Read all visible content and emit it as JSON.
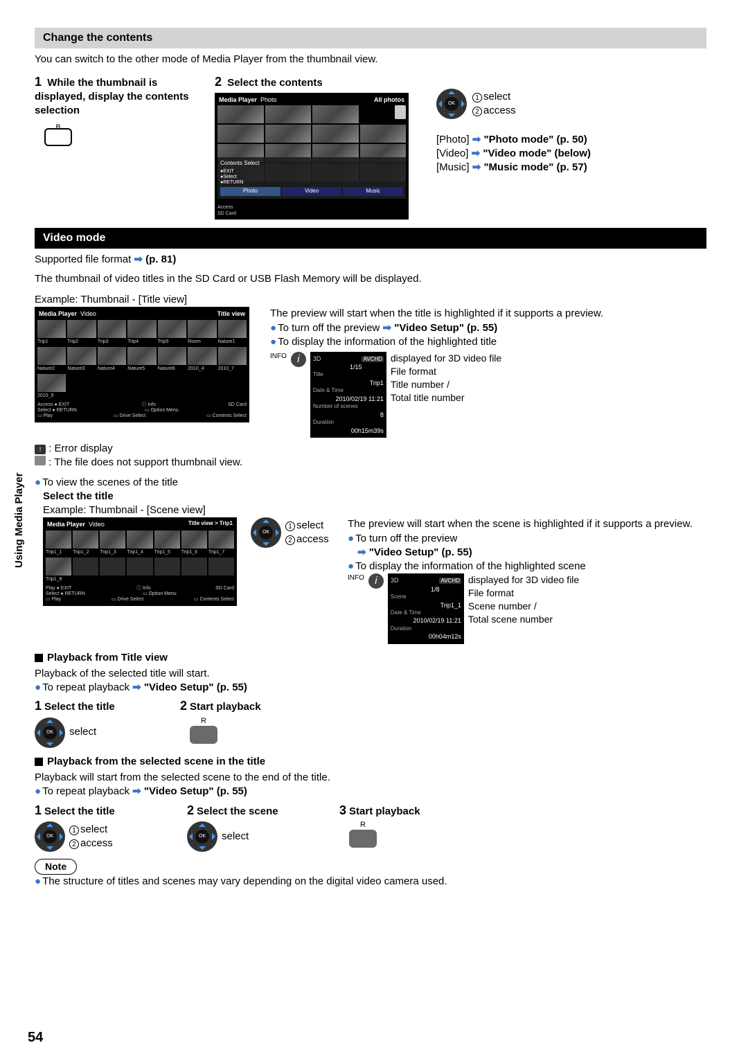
{
  "page": {
    "side_title": "Using Media Player",
    "page_number": "54"
  },
  "change": {
    "header": "Change the contents",
    "intro": "You can switch to the other mode of Media Player from the thumbnail view.",
    "step1_num": "1",
    "step1": "While the thumbnail is displayed, display the contents selection",
    "step1_key": "B",
    "step2_num": "2",
    "step2": "Select the contents",
    "pad_select_1": "select",
    "pad_select_2": "access",
    "links": {
      "photo_label": "[Photo]",
      "photo_ref": "\"Photo mode\" (p. 50)",
      "video_label": "[Video]",
      "video_ref": "\"Video mode\" (below)",
      "music_label": "[Music]",
      "music_ref": "\"Music mode\" (p. 57)"
    },
    "mp": {
      "title": "Media Player",
      "mode": "Photo",
      "right": "All photos",
      "overlay_title": "Contents Select",
      "exit": "EXIT",
      "select": "Select",
      "return": "RETURN",
      "access": "Access",
      "sdcard": "SD Card",
      "tab_photo": "Photo",
      "tab_video": "Video",
      "tab_music": "Music"
    }
  },
  "video": {
    "header": "Video mode",
    "supported_prefix": "Supported file format",
    "supported_ref": "(p. 81)",
    "thumb_intro": "The thumbnail of video titles in the SD Card or USB Flash Memory will be displayed.",
    "example_title": "Example: Thumbnail - [Title view]",
    "mp": {
      "title": "Media Player",
      "mode": "Video",
      "right": "Title view",
      "titles": [
        "Trip1",
        "Trip2",
        "Trip3",
        "Trip4",
        "Trip5",
        "Room",
        "Nature1",
        "Nature2",
        "Nature3",
        "Nature4",
        "Nature5",
        "Nature6",
        "2010_4",
        "2010_7",
        "2010_9"
      ],
      "bottom_access": "Access",
      "bottom_select": "Select",
      "bottom_exit": "EXIT",
      "bottom_return": "RETURN",
      "bottom_info_i": "Info",
      "bottom_option": "Option Menu",
      "bottom_drive": "Drive Select",
      "bottom_contents": "Contents Select",
      "bottom_play": "Play",
      "bottom_sd": "SD Card"
    },
    "preview_text": "The preview will start when the title is highlighted if it supports a preview.",
    "turnoff_prefix": "To turn off the preview",
    "turnoff_ref": "\"Video Setup\" (p. 55)",
    "display_info": "To display the information of the highlighted title",
    "info_box": {
      "info_label": "INFO",
      "threeD": "3D",
      "k_title": "Title",
      "v_title": "Trip1",
      "counter": "1/15",
      "k_date": "Date & Time",
      "v_date": "2010/02/19 11:21",
      "k_scenes": "Number of scenes",
      "v_scenes": "8",
      "k_duration": "Duration",
      "v_duration": "00h15m39s",
      "callout_3d": "displayed for 3D video file",
      "callout_format": "File format",
      "callout_num": "Title number /",
      "callout_total": "Total title number"
    },
    "error_label": ": Error display",
    "nosupport_label": ": The file does not support thumbnail view.",
    "view_scenes": "To view the scenes of the title",
    "select_title": "Select the title",
    "example_scene": "Example: Thumbnail - [Scene view]",
    "scene_mp": {
      "title": "Media Player",
      "mode": "Video",
      "right": "Title view  >  Trip1",
      "scenes": [
        "Trip1_1",
        "Trip1_2",
        "Trip1_3",
        "Trip1_4",
        "Trip1_5",
        "Trip1_6",
        "Trip1_7",
        "Trip1_8"
      ],
      "bottom_play1": "Play",
      "bottom_select": "Select",
      "bottom_exit": "EXIT",
      "bottom_return": "RETURN",
      "bottom_info_i": "Info",
      "bottom_option": "Option Menu",
      "bottom_drive": "Drive Select",
      "bottom_contents": "Contents Select",
      "bottom_play": "Play",
      "bottom_sd": "SD Card"
    },
    "scene_select": "select",
    "scene_access": "access",
    "scene_preview": "The preview will start when the scene is highlighted if it supports a preview.",
    "scene_turnoff": "To turn off the preview",
    "scene_turnoff_ref": "\"Video Setup\" (p. 55)",
    "scene_display_info": "To display the information of the highlighted scene",
    "scene_info": {
      "info_label": "INFO",
      "threeD": "3D",
      "counter": "1/8",
      "k_scene": "Scene",
      "v_scene": "Trip1_1",
      "k_date": "Date & Time",
      "v_date": "2010/02/19 11:21",
      "k_duration": "Duration",
      "v_duration": "00h04m12s",
      "callout_3d": "displayed for 3D video file",
      "callout_format": "File format",
      "callout_num": "Scene number /",
      "callout_total": "Total scene number"
    }
  },
  "playback_title": {
    "header": "Playback from Title view",
    "intro": "Playback of the selected title will start.",
    "repeat_prefix": "To repeat playback",
    "repeat_ref": "\"Video Setup\" (p. 55)",
    "step1_num": "1",
    "step1": "Select the title",
    "step1_pad": "select",
    "step2_num": "2",
    "step2": "Start playback",
    "step2_key": "R"
  },
  "playback_scene": {
    "header": "Playback from the selected scene in the title",
    "intro": "Playback will start from the selected scene to the end of the title.",
    "repeat_prefix": "To repeat playback",
    "repeat_ref": "\"Video Setup\" (p. 55)",
    "step1_num": "1",
    "step1": "Select the title",
    "pad_select": "select",
    "pad_access": "access",
    "step2_num": "2",
    "step2": "Select the scene",
    "step2_pad": "select",
    "step3_num": "3",
    "step3": "Start playback",
    "step3_key": "R"
  },
  "note": {
    "label": "Note",
    "text": "The structure of titles and scenes may vary depending on the digital video camera used."
  }
}
